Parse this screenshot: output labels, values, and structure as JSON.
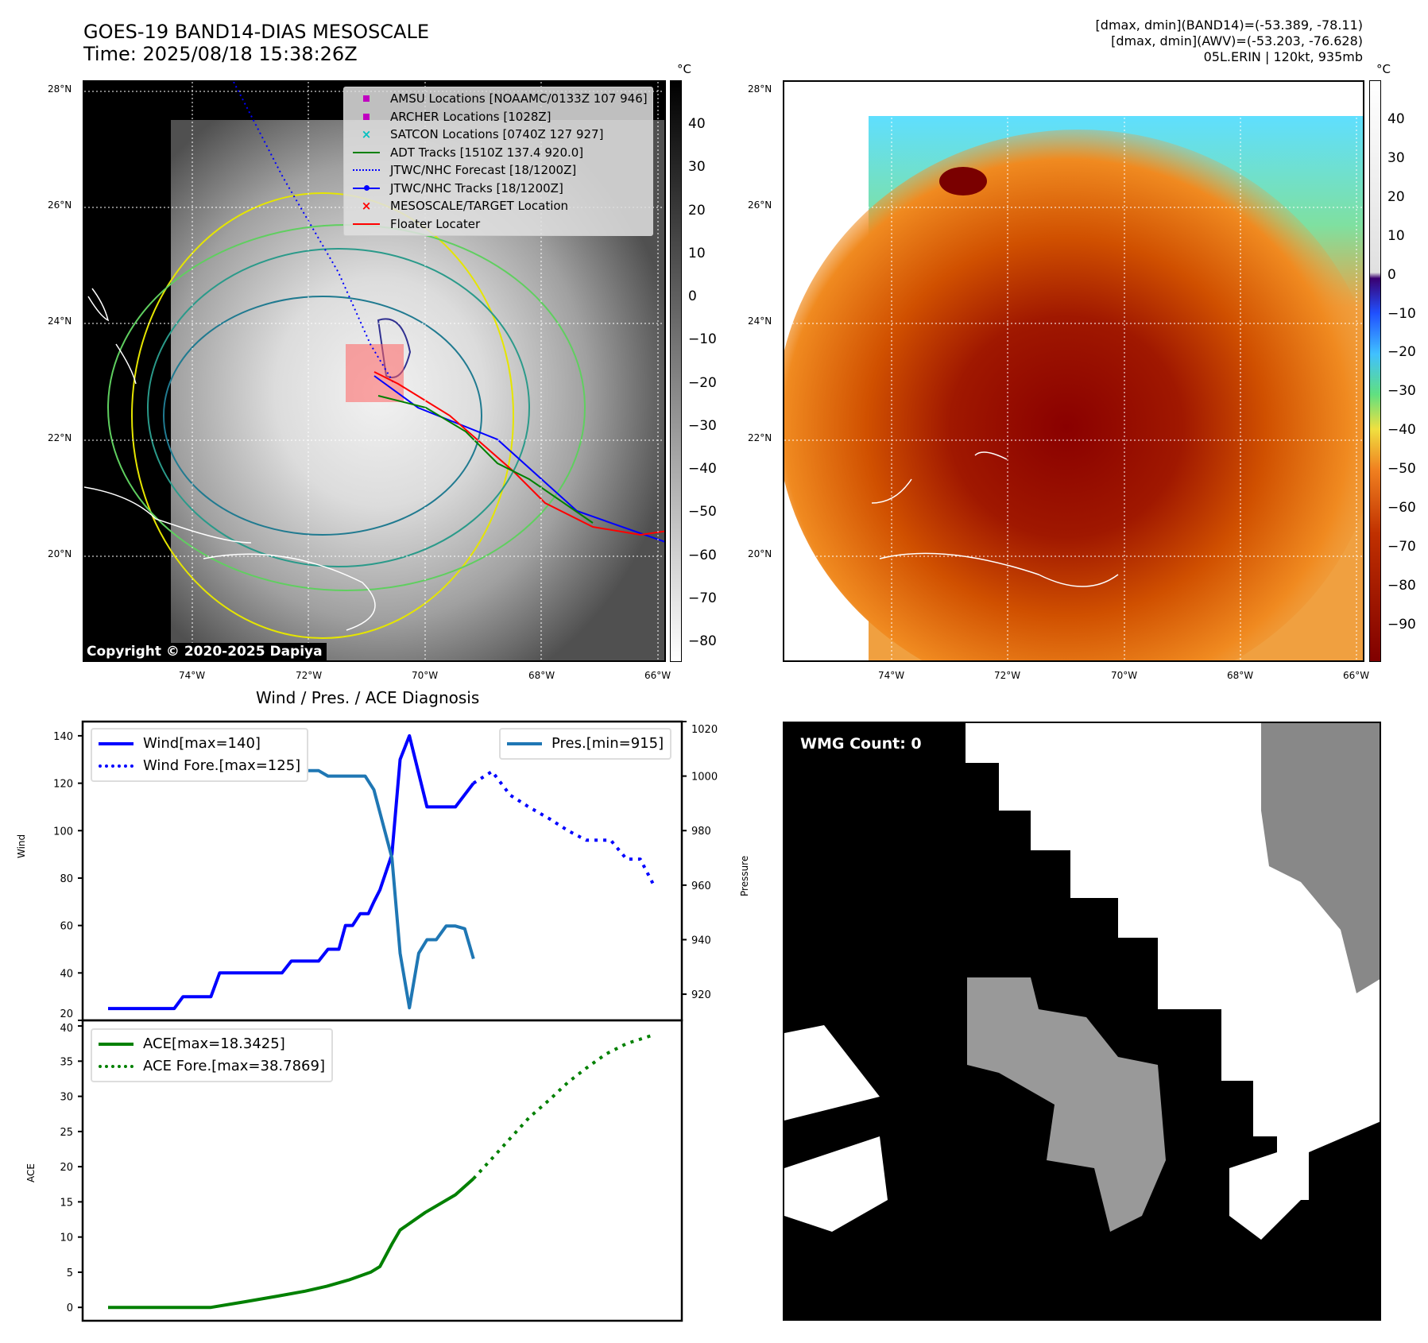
{
  "header": {
    "title_line1": "GOES-19 BAND14-DIAS MESOSCALE",
    "title_line2": "Time: 2025/08/18 15:38:26Z",
    "info_line1": "[dmax, dmin](BAND14)=(-53.389, -78.11)",
    "info_line2": "[dmax, dmin](AWV)=(-53.203, -76.628)",
    "info_line3": "05L.ERIN | 120kt, 935mb"
  },
  "map": {
    "lon_labels": [
      "74°W",
      "72°W",
      "70°W",
      "68°W",
      "66°W"
    ],
    "lat_labels": [
      "28°N",
      "26°N",
      "24°N",
      "22°N",
      "20°N"
    ],
    "copyright": "Copyright © 2020-2025 Dapiya"
  },
  "legend": [
    {
      "label": "AMSU Locations [NOAAMC/0133Z 107 946]",
      "icon": "square-marker",
      "color": "#c000c0"
    },
    {
      "label": "ARCHER Locations [1028Z]",
      "icon": "square-marker",
      "color": "#c000c0"
    },
    {
      "label": "SATCON Locations [0740Z 127 927]",
      "icon": "x-marker",
      "color": "#00c0c0"
    },
    {
      "label": "ADT Tracks [1510Z 137.4 920.0]",
      "icon": "solid-line",
      "color": "#008000"
    },
    {
      "label": "JTWC/NHC Forecast [18/1200Z]",
      "icon": "dotted-line",
      "color": "#0000ff"
    },
    {
      "label": "JTWC/NHC Tracks [18/1200Z]",
      "icon": "line-dot",
      "color": "#0000ff"
    },
    {
      "label": "MESOSCALE/TARGET Location",
      "icon": "x-marker",
      "color": "#ff0000"
    },
    {
      "label": "Floater Locater",
      "icon": "solid-line",
      "color": "#ff0000"
    }
  ],
  "colorbar_left": {
    "unit": "°C",
    "ticks": [
      "40",
      "30",
      "20",
      "10",
      "0",
      "−10",
      "−20",
      "−30",
      "−40",
      "−50",
      "−60",
      "−70",
      "−80"
    ]
  },
  "colorbar_right": {
    "unit": "°C",
    "ticks": [
      "40",
      "30",
      "20",
      "10",
      "0",
      "−10",
      "−20",
      "−30",
      "−40",
      "−50",
      "−60",
      "−70",
      "−80",
      "−90"
    ]
  },
  "wmg": {
    "label": "WMG Count: 0"
  },
  "chart_data": [
    {
      "type": "line",
      "title": "Wind / Pres. / ACE Diagnosis",
      "ylabel": "Wind",
      "y2label": "Pressure",
      "xlim": [
        -4.65,
        104.9
      ],
      "ylim": [
        20,
        146
      ],
      "y2lim": [
        910.4,
        1020
      ],
      "yticks": [
        "20",
        "40",
        "60",
        "80",
        "100",
        "120",
        "140"
      ],
      "y2ticks": [
        "920",
        "940",
        "960",
        "980",
        "1000",
        "1020"
      ],
      "legend_left": [
        "Wind[max=140]",
        "Wind Fore.[max=125]"
      ],
      "legend_right": [
        "Pres.[min=915]"
      ],
      "series": [
        {
          "name": "Wind",
          "color": "#0000ff",
          "style": "solid",
          "points": [
            [
              0,
              25
            ],
            [
              12.1,
              25
            ],
            [
              13.7,
              30
            ],
            [
              18.8,
              30
            ],
            [
              20.4,
              40
            ],
            [
              31.8,
              40
            ],
            [
              33.5,
              45
            ],
            [
              38.5,
              45
            ],
            [
              40.2,
              50
            ],
            [
              42.2,
              50
            ],
            [
              43.4,
              60
            ],
            [
              44.7,
              60
            ],
            [
              46.1,
              65
            ],
            [
              47.6,
              65
            ],
            [
              48.6,
              70
            ],
            [
              49.7,
              75
            ],
            [
              51.9,
              90
            ],
            [
              53.4,
              130
            ],
            [
              55.1,
              140
            ],
            [
              58.3,
              110
            ],
            [
              63.5,
              110
            ],
            [
              66.8,
              120
            ]
          ]
        },
        {
          "name": "Wind Fore.",
          "color": "#0000ff",
          "style": "dotted",
          "points": [
            [
              66.8,
              120
            ],
            [
              70.2,
              125
            ],
            [
              73.5,
              115
            ],
            [
              76.9,
              110
            ],
            [
              80.7,
              105
            ],
            [
              84.1,
              100
            ],
            [
              87.4,
              96
            ],
            [
              89.5,
              96
            ],
            [
              91.9,
              96
            ],
            [
              94.8,
              88
            ],
            [
              97.3,
              88
            ],
            [
              100,
              76
            ]
          ]
        },
        {
          "name": "Pres.",
          "color": "#1f77b4",
          "style": "solid",
          "axis": "right",
          "points": [
            [
              0,
              1017
            ],
            [
              1.7,
              1017
            ],
            [
              3.7,
              1008
            ],
            [
              5.4,
              1006
            ],
            [
              18.8,
              1006
            ],
            [
              21,
              1004
            ],
            [
              24.1,
              1006
            ],
            [
              26,
              1004
            ],
            [
              30,
              1002
            ],
            [
              38.5,
              1002
            ],
            [
              40.2,
              1000
            ],
            [
              47,
              1000
            ],
            [
              48.6,
              995
            ],
            [
              51.9,
              970
            ],
            [
              53.4,
              935
            ],
            [
              55.1,
              915
            ],
            [
              56.8,
              935
            ],
            [
              58.3,
              940
            ],
            [
              60,
              940
            ],
            [
              61.8,
              945
            ],
            [
              63.5,
              945
            ],
            [
              65.2,
              944
            ],
            [
              66.8,
              933
            ]
          ]
        }
      ]
    },
    {
      "type": "line",
      "ylabel": "ACE",
      "xlim": [
        -4.65,
        104.9
      ],
      "ylim": [
        -1.9,
        40.8
      ],
      "yticks": [
        "0",
        "5",
        "10",
        "15",
        "20",
        "25",
        "30",
        "35",
        "40"
      ],
      "legend": [
        "ACE[max=18.3425]",
        "ACE Fore.[max=38.7869]"
      ],
      "series": [
        {
          "name": "ACE",
          "color": "#008000",
          "style": "solid",
          "points": [
            [
              0,
              0
            ],
            [
              18.8,
              0
            ],
            [
              25,
              0.8
            ],
            [
              31,
              1.6
            ],
            [
              36,
              2.3
            ],
            [
              40,
              3.0
            ],
            [
              44,
              3.9
            ],
            [
              48,
              5.0
            ],
            [
              49.7,
              5.8
            ],
            [
              51.9,
              9
            ],
            [
              53.4,
              11
            ],
            [
              58,
              13.5
            ],
            [
              63.5,
              16
            ],
            [
              66.8,
              18.3
            ]
          ]
        },
        {
          "name": "ACE Fore.",
          "color": "#008000",
          "style": "dotted",
          "points": [
            [
              66.8,
              18.3
            ],
            [
              70,
              21
            ],
            [
              73.5,
              24
            ],
            [
              77,
              27
            ],
            [
              80.7,
              29.5
            ],
            [
              84.1,
              32
            ],
            [
              87.4,
              34
            ],
            [
              91,
              36
            ],
            [
              94.8,
              37.5
            ],
            [
              100,
              38.8
            ]
          ]
        }
      ]
    }
  ]
}
